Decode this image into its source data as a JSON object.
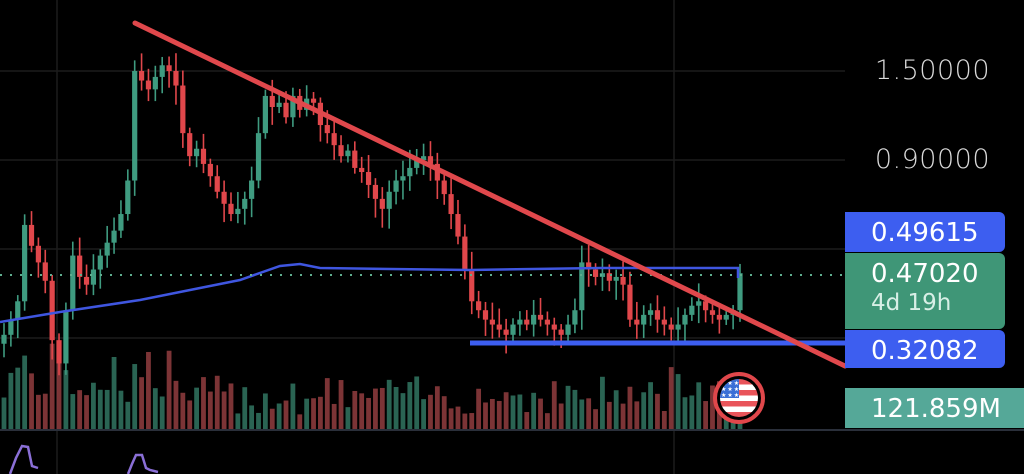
{
  "price_axis": {
    "labels": [
      {
        "value": "1.50000",
        "y": 71
      },
      {
        "value": "0.90000",
        "y": 160
      }
    ]
  },
  "tags": {
    "resistance": {
      "value": "0.49615",
      "color": "#3d5ef0"
    },
    "last_price": {
      "value": "0.47020",
      "countdown": "4d 19h",
      "color": "#3f9677"
    },
    "support": {
      "value": "0.32082",
      "color": "#3d5ef0"
    },
    "volume": {
      "value": "121.859M",
      "color": "#55a898"
    }
  },
  "flag_icon": "us-flag-icon",
  "colors": {
    "up": "#3f9b80",
    "down": "#e0474b",
    "trendline": "#e0484c",
    "support_line": "#3d5ef0",
    "moving_average": "#3f56e0",
    "last_price_dots": "#5fae8f",
    "oscillator": "#8a6fd6",
    "grid": "#1c1c1c"
  },
  "chart_data": {
    "type": "candlestick",
    "title": "",
    "y_scale": "log",
    "y_ticks": [
      "1.50000",
      "0.90000"
    ],
    "annotations": [
      {
        "type": "descending_trendline",
        "from_price_approx": 1.85,
        "to_price_approx": 0.28,
        "color": "#e0484c"
      },
      {
        "type": "horizontal_support",
        "price": 0.32082,
        "color": "#3d5ef0"
      },
      {
        "type": "moving_average",
        "level_end": 0.49615,
        "color": "#3f56e0"
      },
      {
        "type": "last_price_line",
        "price": 0.4702,
        "style": "dotted"
      }
    ],
    "last_price": 0.4702,
    "candle_countdown": "4d 19h",
    "resistance_label": 0.49615,
    "support_label": 0.32082,
    "volume_last": "121.859M",
    "closes_approx": [
      0.33,
      0.36,
      0.4,
      0.62,
      0.55,
      0.5,
      0.45,
      0.32,
      0.28,
      0.38,
      0.52,
      0.46,
      0.44,
      0.48,
      0.52,
      0.56,
      0.6,
      0.66,
      0.8,
      1.5,
      1.42,
      1.35,
      1.45,
      1.55,
      1.5,
      1.38,
      1.05,
      0.92,
      0.96,
      0.88,
      0.82,
      0.75,
      0.7,
      0.66,
      0.68,
      0.72,
      0.8,
      1.05,
      1.3,
      1.22,
      1.25,
      1.15,
      1.3,
      1.2,
      1.28,
      1.25,
      1.1,
      1.05,
      0.98,
      0.92,
      0.95,
      0.86,
      0.84,
      0.78,
      0.72,
      0.68,
      0.75,
      0.8,
      0.82,
      0.86,
      0.9,
      0.92,
      0.88,
      0.8,
      0.74,
      0.66,
      0.58,
      0.48,
      0.4,
      0.38,
      0.36,
      0.35,
      0.34,
      0.33,
      0.35,
      0.36,
      0.35,
      0.37,
      0.36,
      0.35,
      0.34,
      0.33,
      0.35,
      0.38,
      0.5,
      0.48,
      0.46,
      0.47,
      0.45,
      0.46,
      0.44,
      0.36,
      0.35,
      0.37,
      0.38,
      0.36,
      0.35,
      0.34,
      0.35,
      0.37,
      0.39,
      0.4,
      0.38,
      0.37,
      0.36,
      0.37,
      0.38,
      0.47
    ]
  }
}
